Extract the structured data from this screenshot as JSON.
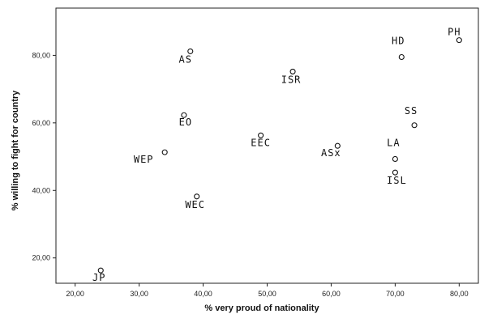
{
  "chart_data": {
    "type": "scatter",
    "xlabel": "% very proud of nationality",
    "ylabel": "% willing to fight for country",
    "xlim": [
      17,
      83
    ],
    "ylim": [
      12.5,
      94
    ],
    "x_ticks": [
      "20,00",
      "30,00",
      "40,00",
      "50,00",
      "60,00",
      "70,00",
      "80,00"
    ],
    "x_tick_values": [
      20,
      30,
      40,
      50,
      60,
      70,
      80
    ],
    "y_ticks": [
      "20,00",
      "40,00",
      "60,00",
      "80,00"
    ],
    "y_tick_values": [
      20,
      40,
      60,
      80
    ],
    "grid": false,
    "points": [
      {
        "label": "PH",
        "x": 80.0,
        "y": 84.5
      },
      {
        "label": "AS",
        "x": 38.0,
        "y": 81.2
      },
      {
        "label": "HD",
        "x": 71.0,
        "y": 79.5
      },
      {
        "label": "ISR",
        "x": 54.0,
        "y": 75.2
      },
      {
        "label": "EO",
        "x": 37.0,
        "y": 62.3
      },
      {
        "label": "SS",
        "x": 73.0,
        "y": 59.3
      },
      {
        "label": "EEC",
        "x": 49.0,
        "y": 56.3
      },
      {
        "label": "ASx",
        "x": 61.0,
        "y": 53.2
      },
      {
        "label": "WEP",
        "x": 34.0,
        "y": 51.3
      },
      {
        "label": "LA",
        "x": 70.0,
        "y": 49.3
      },
      {
        "label": "ISL",
        "x": 70.0,
        "y": 45.3
      },
      {
        "label": "WEC",
        "x": 39.0,
        "y": 38.2
      },
      {
        "label": "JP",
        "x": 24.0,
        "y": 16.3
      }
    ]
  }
}
